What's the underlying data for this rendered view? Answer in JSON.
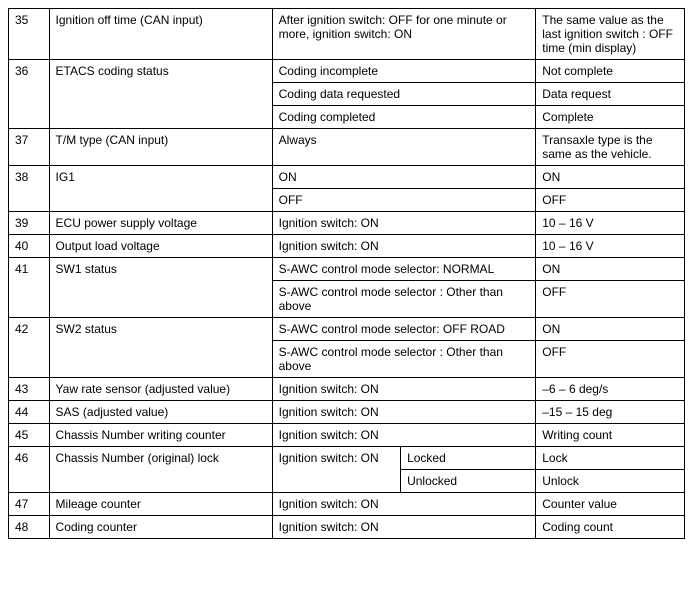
{
  "rows": {
    "r35": {
      "num": "35",
      "name": "Ignition off time (CAN input)",
      "cond": "After ignition switch: OFF for one minute or more, ignition switch: ON",
      "val": "The same value as the last ignition switch : OFF time (min display)"
    },
    "r36": {
      "num": "36",
      "name": "ETACS coding status",
      "c1": "Coding incomplete",
      "v1": "Not complete",
      "c2": "Coding data requested",
      "v2": "Data request",
      "c3": "Coding completed",
      "v3": "Complete"
    },
    "r37": {
      "num": "37",
      "name": "T/M type (CAN input)",
      "cond": "Always",
      "val": "Transaxle type is the same as the vehicle."
    },
    "r38": {
      "num": "38",
      "name": "IG1",
      "c1": "ON",
      "v1": "ON",
      "c2": "OFF",
      "v2": "OFF"
    },
    "r39": {
      "num": "39",
      "name": "ECU power supply voltage",
      "cond": "Ignition switch: ON",
      "val": "10 – 16 V"
    },
    "r40": {
      "num": "40",
      "name": "Output load voltage",
      "cond": "Ignition switch: ON",
      "val": "10 – 16 V"
    },
    "r41": {
      "num": "41",
      "name": "SW1 status",
      "c1": "S-AWC control mode selector: NORMAL",
      "v1": "ON",
      "c2": "S-AWC control mode selector : Other than above",
      "v2": "OFF"
    },
    "r42": {
      "num": "42",
      "name": "SW2 status",
      "c1": "S-AWC control mode selector: OFF ROAD",
      "v1": "ON",
      "c2": "S-AWC control mode selector : Other than above",
      "v2": "OFF"
    },
    "r43": {
      "num": "43",
      "name": "Yaw rate sensor (adjusted value)",
      "cond": "Ignition switch: ON",
      "val": "–6 – 6 deg/s"
    },
    "r44": {
      "num": "44",
      "name": "SAS (adjusted value)",
      "cond": "Ignition switch: ON",
      "val": "–15 – 15 deg"
    },
    "r45": {
      "num": "45",
      "name": "Chassis Number writing counter",
      "cond": "Ignition switch: ON",
      "val": "Writing count"
    },
    "r46": {
      "num": "46",
      "name": "Chassis Number (original) lock",
      "cond": "Ignition switch: ON",
      "s1": "Locked",
      "v1": "Lock",
      "s2": "Unlocked",
      "v2": "Unlock"
    },
    "r47": {
      "num": "47",
      "name": "Mileage counter",
      "cond": "Ignition switch: ON",
      "val": "Counter value"
    },
    "r48": {
      "num": "48",
      "name": "Coding counter",
      "cond": "Ignition switch: ON",
      "val": "Coding count"
    }
  }
}
